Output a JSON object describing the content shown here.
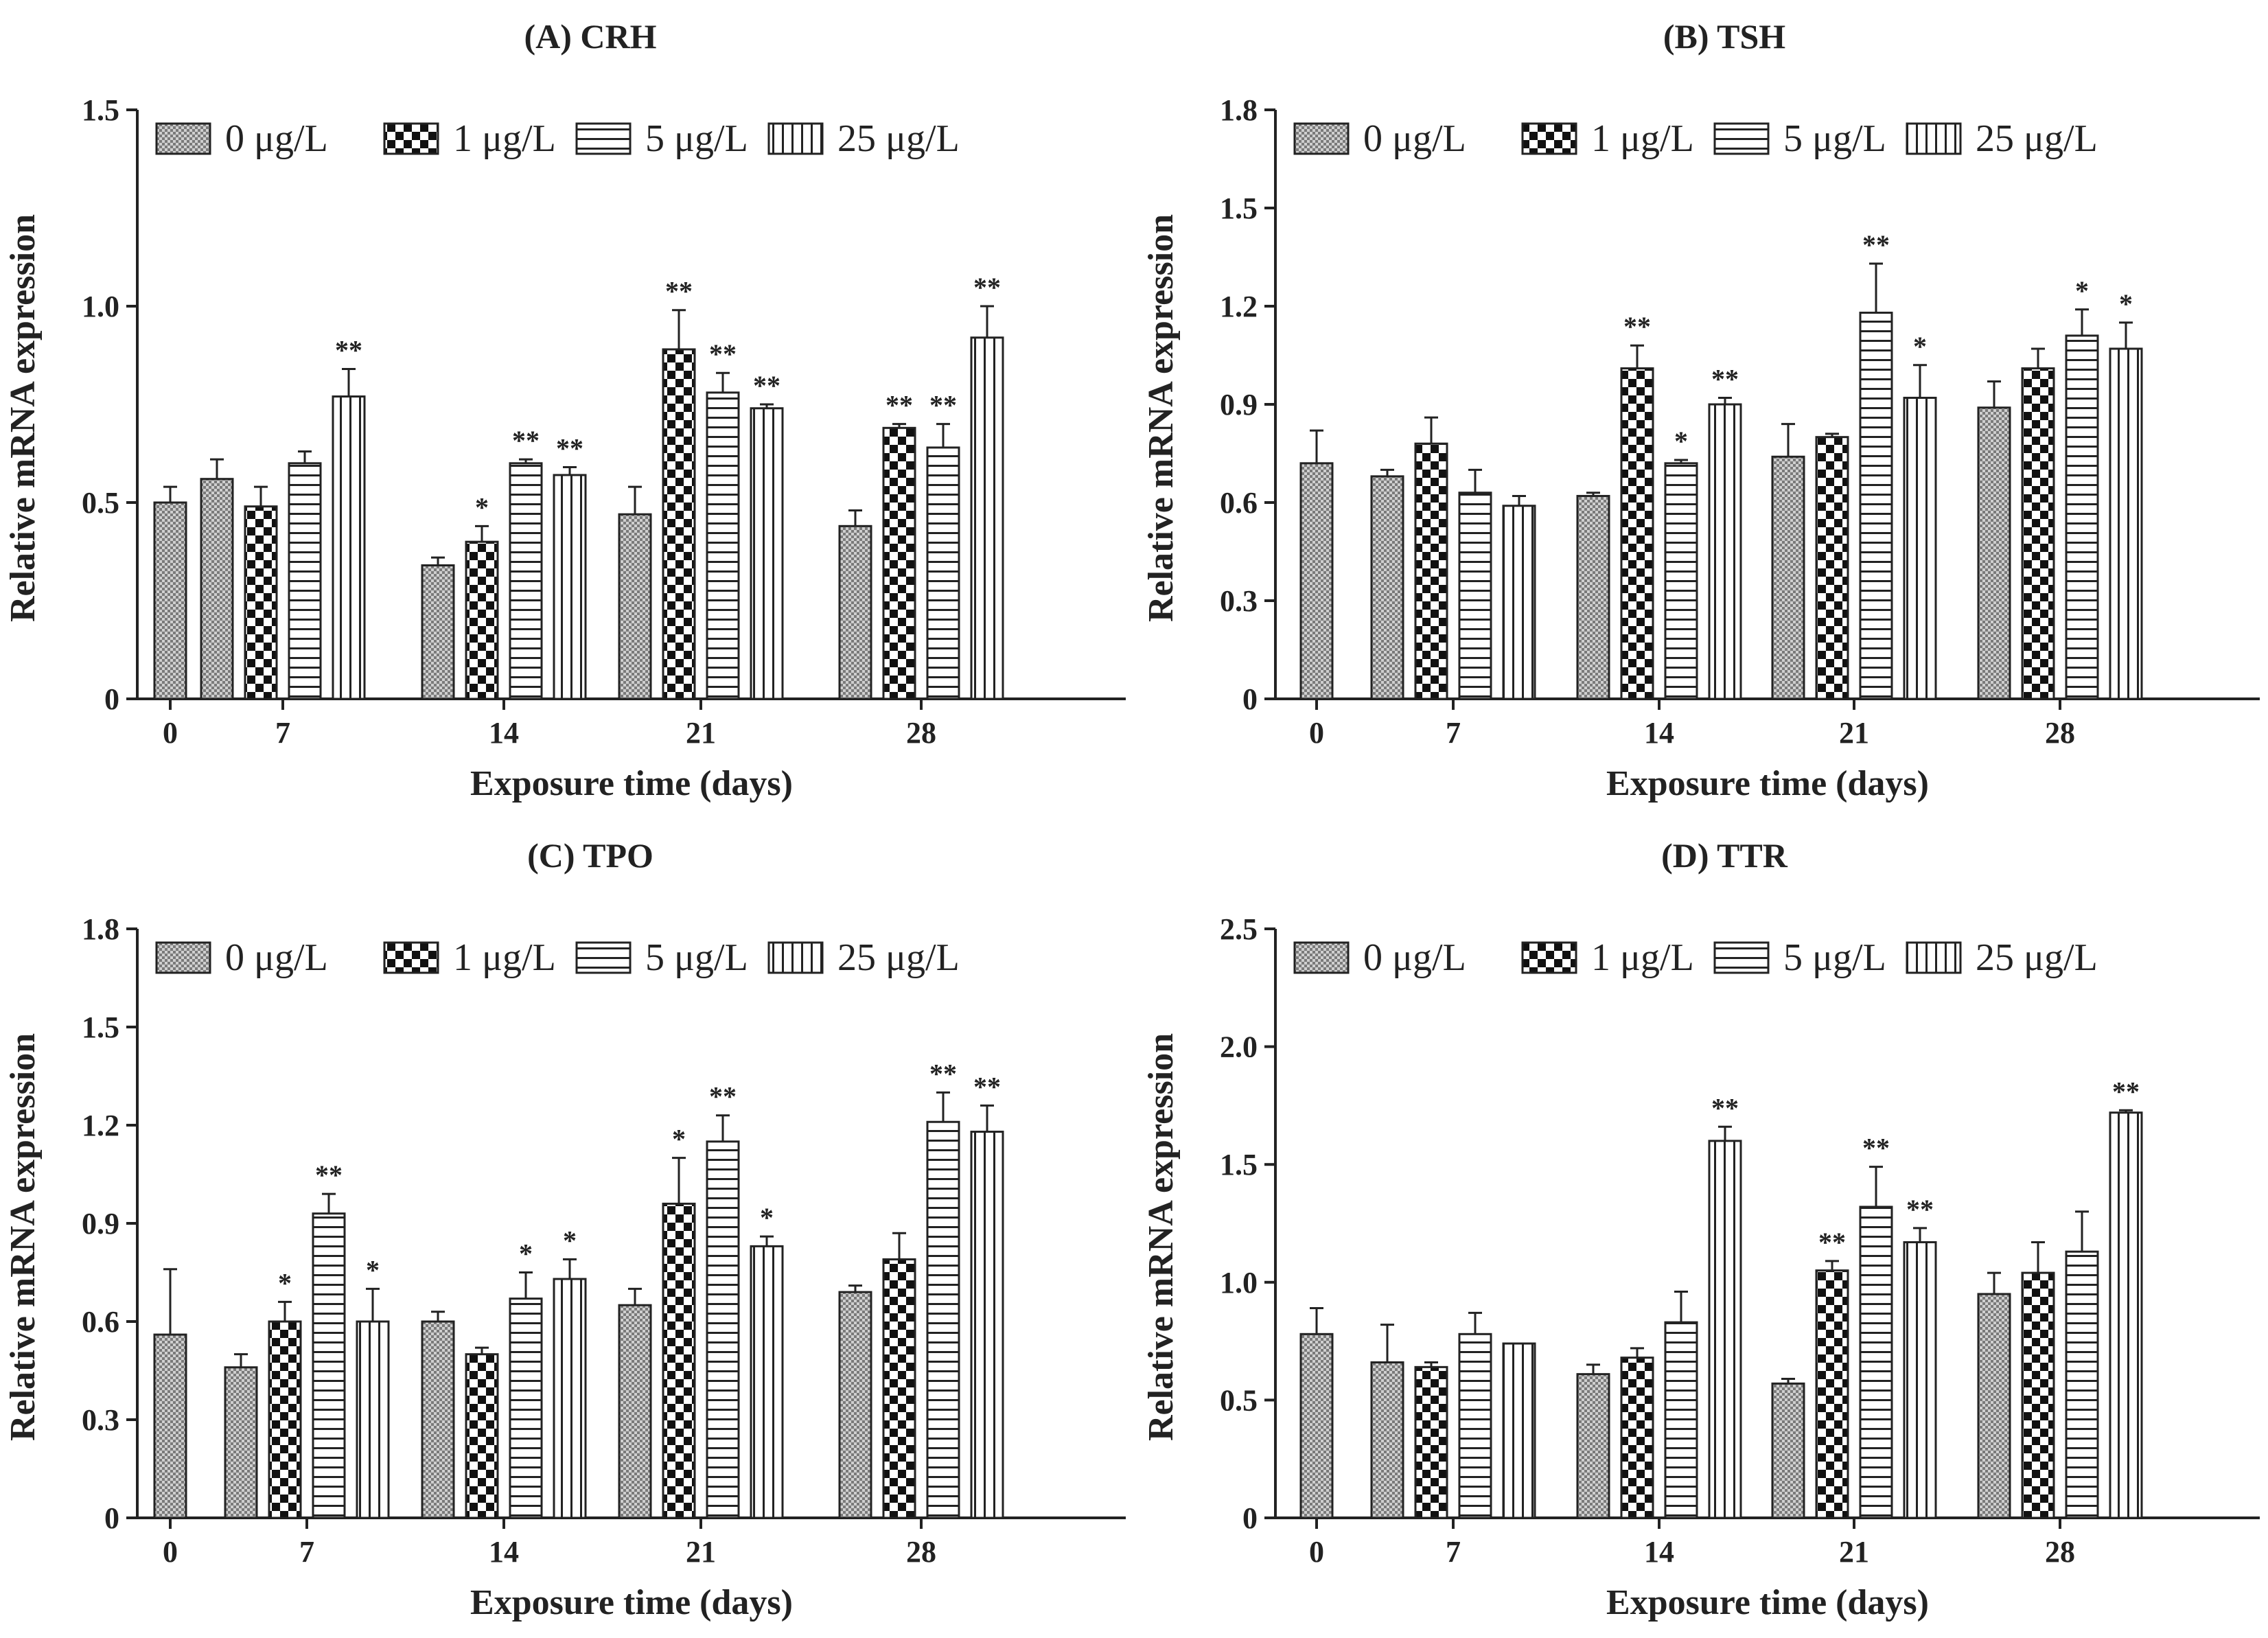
{
  "chart_data": [
    {
      "type": "bar",
      "title": "(A) CRH",
      "xlabel": "Exposure time (days)",
      "ylabel": "Relative mRNA expression",
      "ylim": [
        0,
        1.5
      ],
      "yticks": [
        "0",
        "0.5",
        "1.0",
        "1.5"
      ],
      "categories": [
        "0",
        "7",
        "14",
        "21",
        "28"
      ],
      "series": [
        {
          "name": "0 μg/L",
          "values": [
            0.5,
            0.56,
            0.34,
            0.47,
            0.44
          ],
          "errors": [
            0.04,
            0.05,
            0.02,
            0.07,
            0.04
          ],
          "marks": [
            "",
            "",
            "",
            "",
            ""
          ]
        },
        {
          "name": "1 μg/L",
          "values": [
            null,
            0.49,
            0.4,
            0.89,
            0.69
          ],
          "errors": [
            null,
            0.05,
            0.04,
            0.1,
            0.01
          ],
          "marks": [
            "",
            "",
            "*",
            "**",
            "**"
          ]
        },
        {
          "name": "5 μg/L",
          "values": [
            null,
            0.6,
            0.6,
            0.78,
            0.64
          ],
          "errors": [
            null,
            0.03,
            0.01,
            0.05,
            0.06
          ],
          "marks": [
            "",
            "",
            "**",
            "**",
            "**"
          ]
        },
        {
          "name": "25 μg/L",
          "values": [
            null,
            0.77,
            0.57,
            0.74,
            0.92
          ],
          "errors": [
            null,
            0.07,
            0.02,
            0.01,
            0.08
          ],
          "marks": [
            "",
            "**",
            "**",
            "**",
            "**"
          ]
        }
      ]
    },
    {
      "type": "bar",
      "title": "(B) TSH",
      "xlabel": "Exposure time (days)",
      "ylabel": "Relative mRNA expression",
      "ylim": [
        0,
        1.8
      ],
      "yticks": [
        "0",
        "0.3",
        "0.6",
        "0.9",
        "1.2",
        "1.5",
        "1.8"
      ],
      "categories": [
        "0",
        "7",
        "14",
        "21",
        "28"
      ],
      "series": [
        {
          "name": "0 μg/L",
          "values": [
            0.72,
            0.68,
            0.62,
            0.74,
            0.89
          ],
          "errors": [
            0.1,
            0.02,
            0.01,
            0.1,
            0.08
          ],
          "marks": [
            "",
            "",
            "",
            "",
            ""
          ]
        },
        {
          "name": "1 μg/L",
          "values": [
            null,
            0.78,
            1.01,
            0.8,
            1.01
          ],
          "errors": [
            null,
            0.08,
            0.07,
            0.01,
            0.06
          ],
          "marks": [
            "",
            "",
            "**",
            "",
            ""
          ]
        },
        {
          "name": "5 μg/L",
          "values": [
            null,
            0.63,
            0.72,
            1.18,
            1.11
          ],
          "errors": [
            null,
            0.07,
            0.01,
            0.15,
            0.08
          ],
          "marks": [
            "",
            "",
            "*",
            "**",
            "*"
          ]
        },
        {
          "name": "25 μg/L",
          "values": [
            null,
            0.59,
            0.9,
            0.92,
            1.07
          ],
          "errors": [
            null,
            0.03,
            0.02,
            0.1,
            0.08
          ],
          "marks": [
            "",
            "",
            "**",
            "*",
            "*"
          ]
        }
      ]
    },
    {
      "type": "bar",
      "title": "(C) TPO",
      "xlabel": "Exposure time (days)",
      "ylabel": "Relative mRNA expression",
      "ylim": [
        0,
        1.8
      ],
      "yticks": [
        "0",
        "0.3",
        "0.6",
        "0.9",
        "1.2",
        "1.5",
        "1.8"
      ],
      "categories": [
        "0",
        "7",
        "14",
        "21",
        "28"
      ],
      "series": [
        {
          "name": "0 μg/L",
          "values": [
            0.56,
            0.46,
            0.6,
            0.65,
            0.69
          ],
          "errors": [
            0.2,
            0.04,
            0.03,
            0.05,
            0.02
          ],
          "marks": [
            "",
            "",
            "",
            "",
            ""
          ]
        },
        {
          "name": "1 μg/L",
          "values": [
            null,
            0.6,
            0.5,
            0.96,
            0.79
          ],
          "errors": [
            null,
            0.06,
            0.02,
            0.14,
            0.08
          ],
          "marks": [
            "",
            "*",
            "",
            "*",
            ""
          ]
        },
        {
          "name": "5 μg/L",
          "values": [
            null,
            0.93,
            0.67,
            1.15,
            1.21
          ],
          "errors": [
            null,
            0.06,
            0.08,
            0.08,
            0.09
          ],
          "marks": [
            "",
            "**",
            "*",
            "**",
            "**"
          ]
        },
        {
          "name": "25 μg/L",
          "values": [
            null,
            0.6,
            0.73,
            0.83,
            1.18
          ],
          "errors": [
            null,
            0.1,
            0.06,
            0.03,
            0.08
          ],
          "marks": [
            "",
            "*",
            "*",
            "*",
            "**"
          ]
        }
      ]
    },
    {
      "type": "bar",
      "title": "(D) TTR",
      "xlabel": "Exposure time (days)",
      "ylabel": "Relative mRNA expression",
      "ylim": [
        0,
        2.5
      ],
      "yticks": [
        "0",
        "0.5",
        "1.0",
        "1.5",
        "2.0",
        "2.5"
      ],
      "categories": [
        "0",
        "7",
        "14",
        "21",
        "28"
      ],
      "series": [
        {
          "name": "0 μg/L",
          "values": [
            0.78,
            0.66,
            0.61,
            0.57,
            0.95
          ],
          "errors": [
            0.11,
            0.16,
            0.04,
            0.02,
            0.09
          ],
          "marks": [
            "",
            "",
            "",
            "",
            ""
          ]
        },
        {
          "name": "1 μg/L",
          "values": [
            null,
            0.64,
            0.68,
            1.05,
            1.04
          ],
          "errors": [
            null,
            0.02,
            0.04,
            0.04,
            0.13
          ],
          "marks": [
            "",
            "",
            "",
            "**",
            ""
          ]
        },
        {
          "name": "5 μg/L",
          "values": [
            null,
            0.78,
            0.83,
            1.32,
            1.13
          ],
          "errors": [
            null,
            0.09,
            0.13,
            0.17,
            0.17
          ],
          "marks": [
            "",
            "",
            "",
            "**",
            ""
          ]
        },
        {
          "name": "25 μg/L",
          "values": [
            null,
            0.74,
            1.6,
            1.17,
            1.72
          ],
          "errors": [
            null,
            0.0,
            0.06,
            0.06,
            0.01
          ],
          "marks": [
            "",
            "",
            "**",
            "**",
            "**"
          ]
        }
      ]
    }
  ],
  "legend_patterns": [
    "fine-dots",
    "checker",
    "horizontal",
    "vertical"
  ]
}
